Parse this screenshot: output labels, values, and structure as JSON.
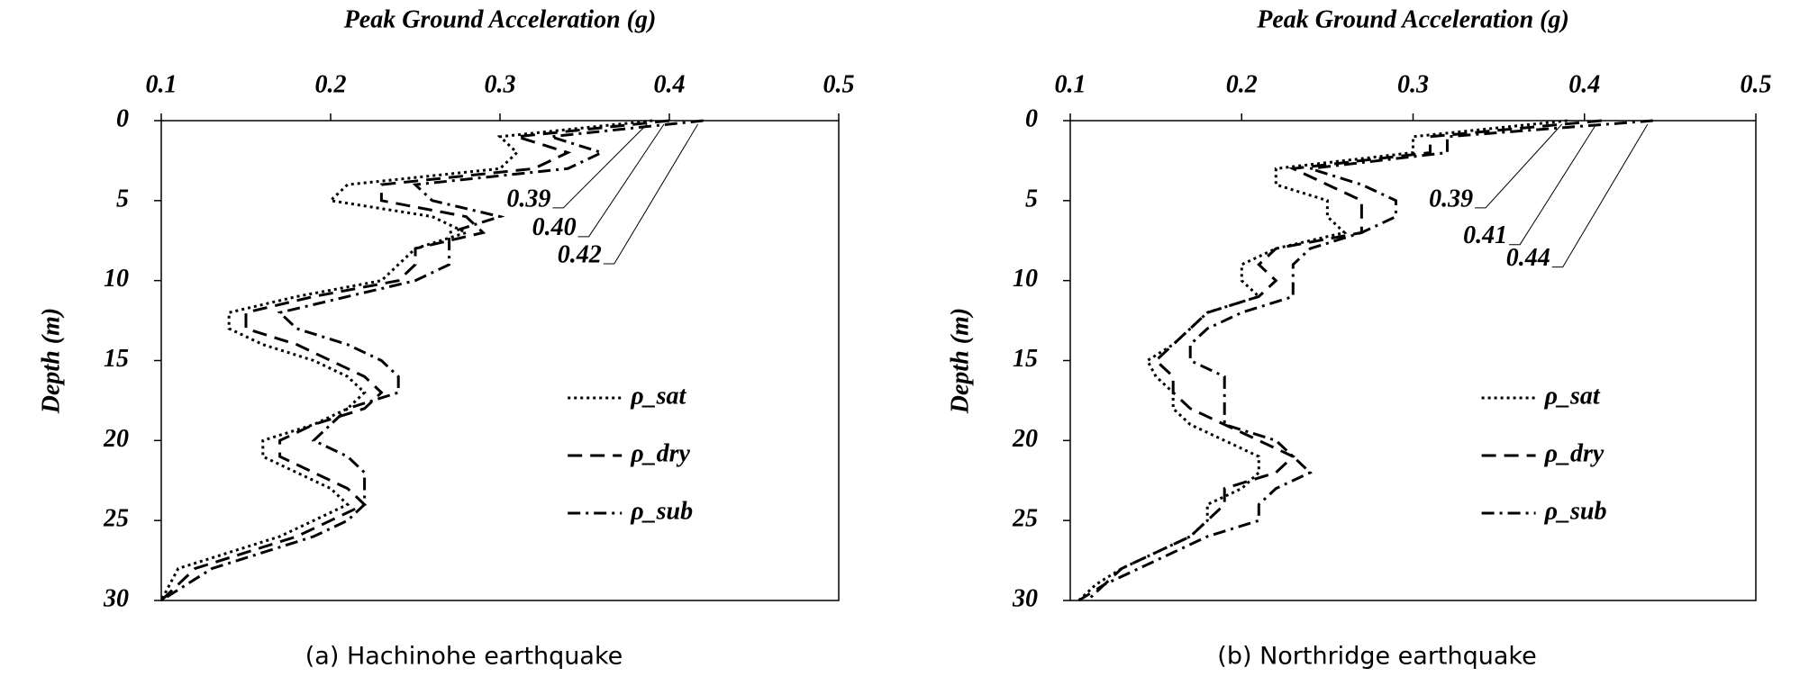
{
  "chart_data": [
    {
      "type": "line",
      "title": "Peak Ground Acceleration (g)",
      "y_label": "Depth (m)",
      "caption": "(a) Hachinohe earthquake",
      "xlim": [
        0.1,
        0.5
      ],
      "xticks": [
        0.1,
        0.2,
        0.3,
        0.4,
        0.5
      ],
      "ylim": [
        0,
        30
      ],
      "yticks": [
        0,
        5,
        10,
        15,
        20,
        25,
        30
      ],
      "y_inverted": true,
      "legend": "lower right",
      "y": [
        0,
        1,
        2,
        3,
        4,
        5,
        6,
        7,
        8,
        9,
        10,
        11,
        12,
        13,
        14,
        15,
        16,
        17,
        18,
        19,
        20,
        21,
        22,
        23,
        24,
        25,
        26,
        27,
        28,
        29,
        30
      ],
      "series": [
        {
          "name": "ρ_sat",
          "color": "#000000",
          "dash": "dotted",
          "values": [
            0.39,
            0.3,
            0.31,
            0.3,
            0.21,
            0.2,
            0.26,
            0.28,
            0.25,
            0.24,
            0.23,
            0.18,
            0.14,
            0.14,
            0.16,
            0.19,
            0.21,
            0.22,
            0.21,
            0.19,
            0.16,
            0.16,
            0.18,
            0.2,
            0.21,
            0.19,
            0.17,
            0.14,
            0.11,
            0.105,
            0.1
          ]
        },
        {
          "name": "ρ_dry",
          "color": "#000000",
          "dash": "dashed",
          "values": [
            0.4,
            0.31,
            0.34,
            0.32,
            0.23,
            0.23,
            0.28,
            0.29,
            0.25,
            0.25,
            0.24,
            0.19,
            0.15,
            0.15,
            0.18,
            0.2,
            0.22,
            0.23,
            0.22,
            0.19,
            0.17,
            0.17,
            0.19,
            0.21,
            0.22,
            0.2,
            0.18,
            0.15,
            0.12,
            0.11,
            0.1
          ]
        },
        {
          "name": "ρ_sub",
          "color": "#000000",
          "dash": "dashdot",
          "values": [
            0.42,
            0.33,
            0.36,
            0.34,
            0.25,
            0.26,
            0.3,
            0.27,
            0.27,
            0.27,
            0.25,
            0.21,
            0.17,
            0.18,
            0.21,
            0.23,
            0.24,
            0.24,
            0.21,
            0.2,
            0.19,
            0.21,
            0.22,
            0.22,
            0.22,
            0.21,
            0.19,
            0.16,
            0.13,
            0.115,
            0.1
          ]
        }
      ],
      "annotations": [
        "0.39",
        "0.40",
        "0.42"
      ]
    },
    {
      "type": "line",
      "title": "Peak Ground Acceleration (g)",
      "y_label": "Depth (m)",
      "caption": "(b) Northridge earthquake",
      "xlim": [
        0.1,
        0.5
      ],
      "xticks": [
        0.1,
        0.2,
        0.3,
        0.4,
        0.5
      ],
      "ylim": [
        0,
        30
      ],
      "yticks": [
        0,
        5,
        10,
        15,
        20,
        25,
        30
      ],
      "y_inverted": true,
      "legend": "lower right",
      "y": [
        0,
        1,
        2,
        3,
        4,
        5,
        6,
        7,
        8,
        9,
        10,
        11,
        12,
        13,
        14,
        15,
        16,
        17,
        18,
        19,
        20,
        21,
        22,
        23,
        24,
        25,
        26,
        27,
        28,
        29,
        30
      ],
      "series": [
        {
          "name": "ρ_sat",
          "color": "#000000",
          "dash": "dotted",
          "values": [
            0.39,
            0.3,
            0.3,
            0.22,
            0.22,
            0.25,
            0.25,
            0.26,
            0.22,
            0.2,
            0.2,
            0.21,
            0.18,
            0.17,
            0.16,
            0.145,
            0.15,
            0.16,
            0.16,
            0.17,
            0.19,
            0.21,
            0.21,
            0.2,
            0.18,
            0.18,
            0.17,
            0.15,
            0.13,
            0.115,
            0.105
          ]
        },
        {
          "name": "ρ_dry",
          "color": "#000000",
          "dash": "dashed",
          "values": [
            0.41,
            0.31,
            0.31,
            0.23,
            0.25,
            0.27,
            0.27,
            0.27,
            0.22,
            0.21,
            0.22,
            0.21,
            0.18,
            0.17,
            0.16,
            0.15,
            0.16,
            0.16,
            0.17,
            0.19,
            0.21,
            0.23,
            0.22,
            0.19,
            0.19,
            0.18,
            0.17,
            0.15,
            0.13,
            0.12,
            0.105
          ]
        },
        {
          "name": "ρ_sub",
          "color": "#000000",
          "dash": "dashdot",
          "values": [
            0.44,
            0.32,
            0.32,
            0.24,
            0.27,
            0.29,
            0.29,
            0.27,
            0.24,
            0.23,
            0.23,
            0.23,
            0.2,
            0.18,
            0.17,
            0.17,
            0.19,
            0.19,
            0.19,
            0.19,
            0.22,
            0.23,
            0.24,
            0.22,
            0.21,
            0.21,
            0.18,
            0.16,
            0.14,
            0.12,
            0.11
          ]
        }
      ],
      "annotations": [
        "0.39",
        "0.41",
        "0.44"
      ]
    }
  ]
}
